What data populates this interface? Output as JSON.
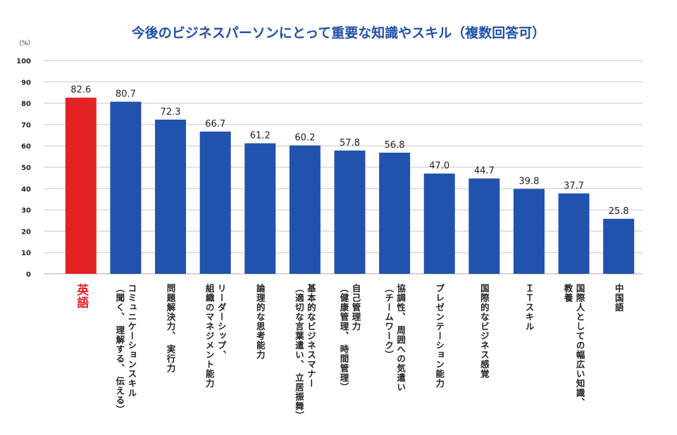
{
  "chart_data": {
    "type": "bar",
    "title": "今後のビジネスパーソンにとって重要な知識やスキル（複数回答可）",
    "ylabel": "（%）",
    "xlabel": "",
    "ylim": [
      0,
      100
    ],
    "yticks": [
      0,
      10,
      20,
      30,
      40,
      50,
      60,
      70,
      80,
      90,
      100
    ],
    "grid": true,
    "categories": [
      [
        "英語"
      ],
      [
        "コミュニケーションスキル",
        "（聞く、 理解する、 伝える）"
      ],
      [
        "問題解決力、 実行力"
      ],
      [
        "リーダーシップ、",
        "組織のマネジメント能力"
      ],
      [
        "論理的な思考能力"
      ],
      [
        "基本的なビジネスマナー",
        "（適切な言葉遣い、 立居振舞）"
      ],
      [
        "自己管理力",
        "（健康管理、 時間管理）"
      ],
      [
        "協調性、 周囲への気遣い",
        "（チームワーク）"
      ],
      [
        "プレゼンテーション能力"
      ],
      [
        "国際的なビジネス感覚"
      ],
      [
        "ＩＴスキル"
      ],
      [
        "国際人としての幅広い知識、",
        "教養"
      ],
      [
        "中国語"
      ]
    ],
    "values": [
      82.6,
      80.7,
      72.3,
      66.7,
      61.2,
      60.2,
      57.8,
      56.8,
      47.0,
      44.7,
      39.8,
      37.7,
      25.8
    ],
    "value_labels": [
      "82.6",
      "80.7",
      "72.3",
      "66.7",
      "61.2",
      "60.2",
      "57.8",
      "56.8",
      "47.0",
      "44.7",
      "39.8",
      "37.7",
      "25.8"
    ],
    "highlight_index": 0,
    "colors": {
      "bar": "#2152ad",
      "highlight": "#e32223",
      "title": "#1f50a8",
      "grid": "#d9d9d9"
    }
  }
}
